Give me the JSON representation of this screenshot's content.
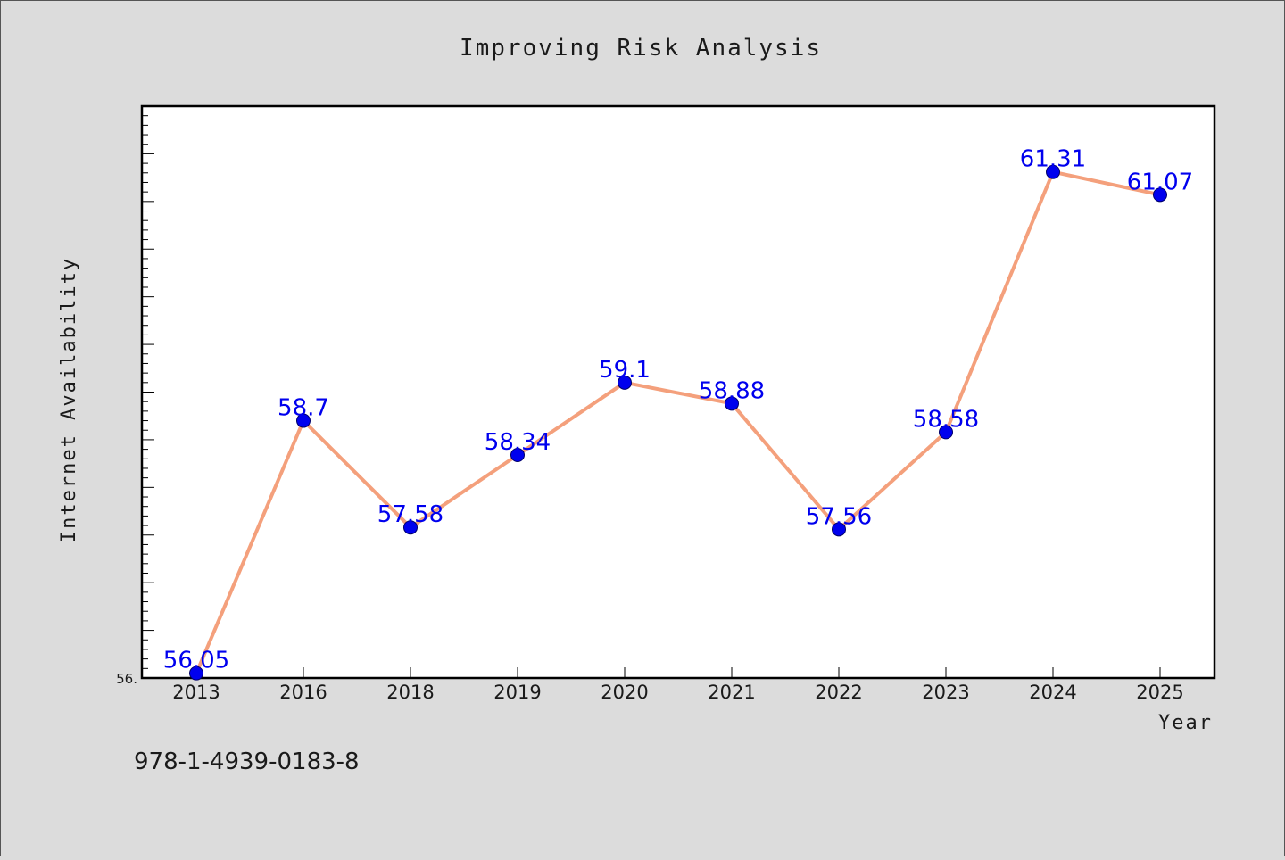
{
  "chart_data": {
    "type": "line",
    "title": "Improving Risk Analysis",
    "xlabel": "Year",
    "ylabel": "Internet Availability",
    "categories": [
      "2013",
      "2016",
      "2018",
      "2019",
      "2020",
      "2021",
      "2022",
      "2023",
      "2024",
      "2025"
    ],
    "series": [
      {
        "values": [
          56.05,
          58.7,
          57.58,
          58.34,
          59.1,
          58.88,
          57.56,
          58.58,
          61.31,
          61.07
        ]
      }
    ],
    "data_labels": [
      "56.05",
      "58.7",
      "57.58",
      "58.34",
      "59.1",
      "58.88",
      "57.56",
      "58.58",
      "61.31",
      "61.07"
    ],
    "ylim": [
      56.0,
      62.0
    ],
    "y_tick_label": "56.",
    "grid": false,
    "legend": "none",
    "colors": {
      "background": "#dcdcdc",
      "plot_background": "#ffffff",
      "line": "#f4a07c",
      "marker": "#0000ee",
      "data_label": "#0000ee",
      "text": "#1a1a1a"
    }
  },
  "footer": {
    "isbn": "978-1-4939-0183-8"
  }
}
